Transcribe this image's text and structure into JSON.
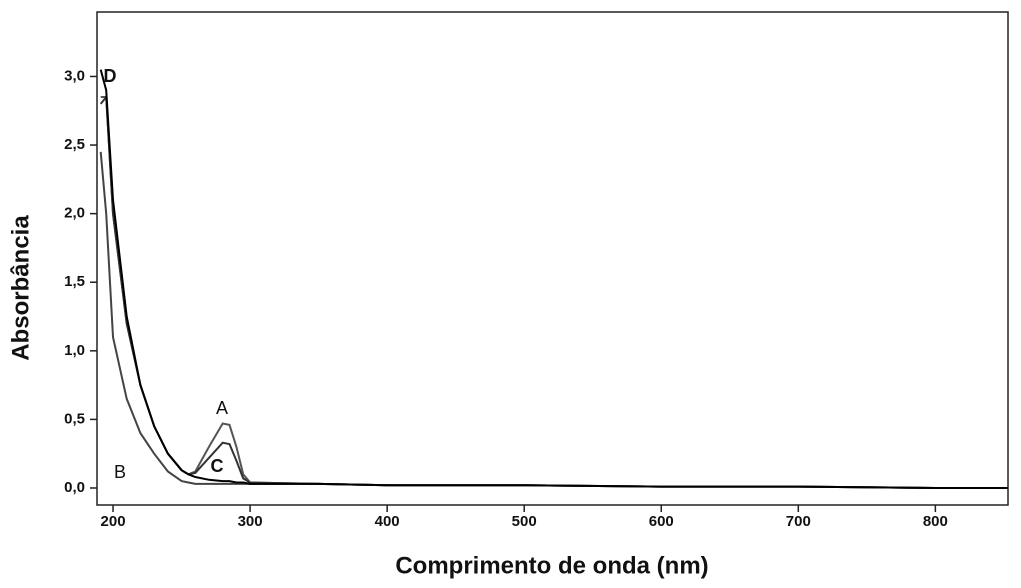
{
  "chart_data": {
    "type": "line",
    "x_label": "Comprimento de onda (nm)",
    "y_label": "Absorbância",
    "x": [
      191,
      195,
      200,
      210,
      220,
      230,
      240,
      250,
      255,
      260,
      270,
      280,
      285,
      290,
      295,
      300,
      350,
      400,
      500,
      600,
      700,
      800,
      853
    ],
    "series": [
      {
        "name": "A",
        "color": "#555555",
        "values": [
          2.85,
          2.85,
          2.0,
          1.2,
          0.75,
          0.45,
          0.25,
          0.13,
          0.1,
          0.12,
          0.3,
          0.47,
          0.46,
          0.3,
          0.1,
          0.04,
          0.03,
          0.02,
          0.02,
          0.01,
          0.01,
          0.0,
          0.0
        ]
      },
      {
        "name": "B",
        "color": "#444444",
        "values": [
          2.45,
          2.0,
          1.1,
          0.65,
          0.4,
          0.25,
          0.12,
          0.05,
          0.04,
          0.03,
          0.03,
          0.03,
          0.03,
          0.03,
          0.03,
          0.03,
          0.03,
          0.02,
          0.02,
          0.01,
          0.01,
          0.0,
          0.0
        ]
      },
      {
        "name": "C",
        "color": "#333333",
        "values": [
          2.8,
          2.85,
          2.0,
          1.2,
          0.75,
          0.45,
          0.25,
          0.13,
          0.1,
          0.11,
          0.22,
          0.33,
          0.32,
          0.2,
          0.07,
          0.04,
          0.03,
          0.02,
          0.02,
          0.01,
          0.01,
          0.0,
          0.0
        ]
      },
      {
        "name": "D",
        "color": "#000000",
        "values": [
          3.05,
          2.9,
          2.1,
          1.25,
          0.75,
          0.45,
          0.25,
          0.13,
          0.1,
          0.08,
          0.06,
          0.05,
          0.05,
          0.04,
          0.04,
          0.03,
          0.03,
          0.02,
          0.02,
          0.01,
          0.01,
          0.0,
          0.0
        ]
      }
    ],
    "xlim": [
      188.3,
      853
    ],
    "ylim": [
      -0.124,
      3.47
    ],
    "xticks": [
      200,
      300,
      400,
      500,
      600,
      700,
      800
    ],
    "yticks": [
      {
        "value": 0,
        "label": "0,0"
      },
      {
        "value": 0.5,
        "label": "0,5"
      },
      {
        "value": 1.0,
        "label": "1,0"
      },
      {
        "value": 1.5,
        "label": "1,5"
      },
      {
        "value": 2.0,
        "label": "2,0"
      },
      {
        "value": 2.5,
        "label": "2,5"
      },
      {
        "value": 3.0,
        "label": "3,0"
      }
    ],
    "grid": false,
    "legend": false
  }
}
